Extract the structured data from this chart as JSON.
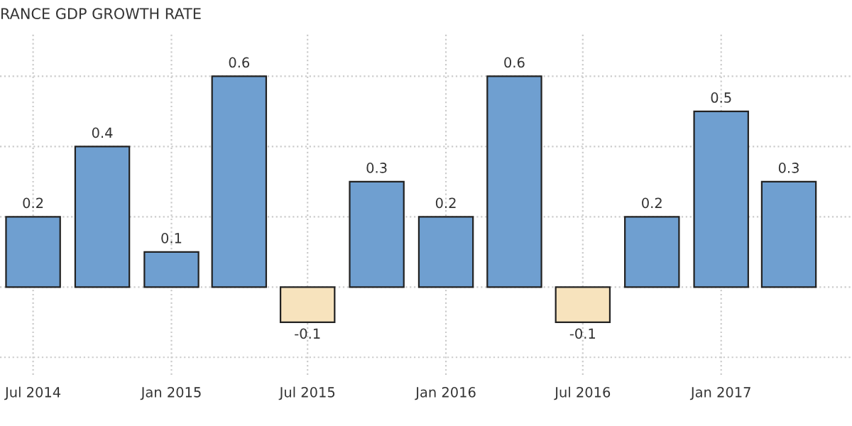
{
  "chart_data": {
    "type": "bar",
    "title": "RANCE GDP GROWTH RATE",
    "x": [
      "2014-07-01",
      "2014-10-01",
      "2015-01-01",
      "2015-04-01",
      "2015-07-01",
      "2015-10-01",
      "2016-01-01",
      "2016-04-01",
      "2016-07-01",
      "2016-10-01",
      "2017-01-01",
      "2017-04-01"
    ],
    "values": [
      0.2,
      0.4,
      0.1,
      0.6,
      -0.1,
      0.3,
      0.2,
      0.6,
      -0.1,
      0.2,
      0.5,
      0.3
    ],
    "colors": [
      "#6f9fd0",
      "#6f9fd0",
      "#6f9fd0",
      "#6f9fd0",
      "#f7e3bd",
      "#6f9fd0",
      "#6f9fd0",
      "#6f9fd0",
      "#f7e3bd",
      "#6f9fd0",
      "#6f9fd0",
      "#6f9fd0"
    ],
    "data_labels": true,
    "xlim": [
      "2014-05-18",
      "2017-06-24"
    ],
    "xticks": [
      {
        "value": "2014-07-01",
        "label": "Jul 2014"
      },
      {
        "value": "2015-01-01",
        "label": "Jan 2015"
      },
      {
        "value": "2015-07-01",
        "label": "Jul 2015"
      },
      {
        "value": "2016-01-01",
        "label": "Jan 2016"
      },
      {
        "value": "2016-07-01",
        "label": "Jul 2016"
      },
      {
        "value": "2017-01-01",
        "label": "Jan 2017"
      }
    ],
    "ylim": [
      -0.25,
      0.72
    ],
    "yticks": [
      {
        "value": -0.2,
        "label": null
      },
      {
        "value": 0,
        "label": null
      },
      {
        "value": 0.2,
        "label": null
      },
      {
        "value": 0.4,
        "label": null
      },
      {
        "value": 0.6,
        "label": null
      }
    ],
    "tick_labels": "x",
    "grid": true
  }
}
